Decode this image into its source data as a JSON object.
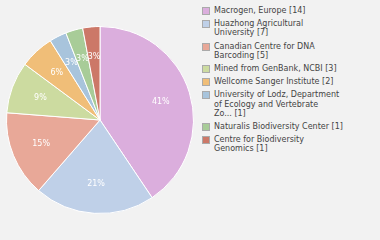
{
  "chart_data": {
    "type": "pie",
    "categories": [
      "Macrogen, Europe [14]",
      "Huazhong Agricultural\nUniversity [7]",
      "Canadian Centre for DNA\nBarcoding [5]",
      "Mined from GenBank, NCBI [3]",
      "Wellcome Sanger Institute [2]",
      "University of Lodz, Department\nof Ecology and Vertebrate\nZo... [1]",
      "Naturalis Biodiversity Center [1]",
      "Centre for Biodiversity\nGenomics [1]"
    ],
    "values": [
      41,
      21,
      15,
      9,
      6,
      3,
      3,
      3
    ],
    "value_labels": [
      "41%",
      "21%",
      "15%",
      "9%",
      "6%",
      "3%",
      "3%",
      "3%"
    ],
    "colors": [
      "#dbaedd",
      "#bfd0e8",
      "#e8a898",
      "#ccdba0",
      "#f0be78",
      "#a8c4dc",
      "#a8cc98",
      "#cc7868"
    ],
    "data_labels": true,
    "legend": "right"
  }
}
